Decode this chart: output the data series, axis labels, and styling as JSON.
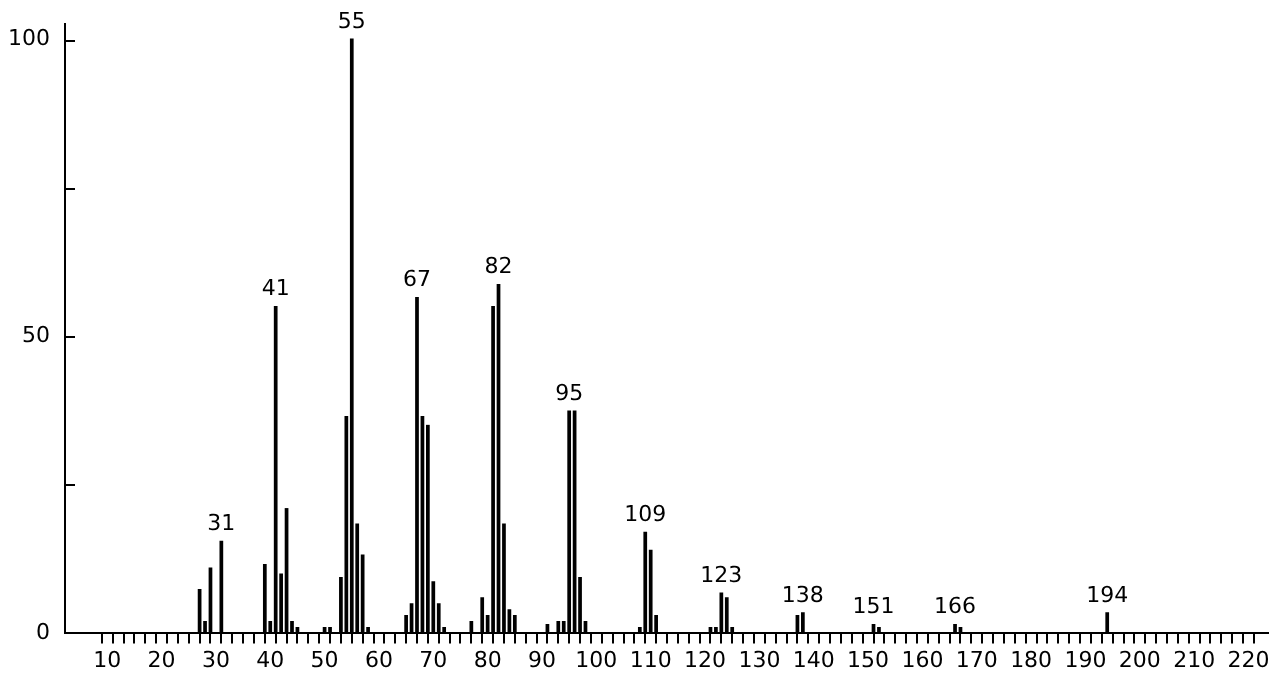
{
  "chart_data": {
    "type": "bar",
    "color": "#000000",
    "x": [
      27,
      28,
      29,
      31,
      39,
      40,
      41,
      42,
      43,
      44,
      45,
      50,
      51,
      53,
      54,
      55,
      56,
      57,
      58,
      65,
      66,
      67,
      68,
      69,
      70,
      71,
      72,
      77,
      79,
      80,
      81,
      82,
      83,
      84,
      85,
      91,
      93,
      94,
      95,
      96,
      97,
      98,
      108,
      109,
      110,
      111,
      121,
      122,
      123,
      124,
      125,
      137,
      138,
      151,
      152,
      166,
      167,
      194
    ],
    "values": [
      7.4,
      2,
      11,
      15.5,
      11.6,
      2,
      55,
      10,
      21,
      2,
      1,
      1,
      1,
      9.4,
      36.5,
      100,
      18.4,
      13.2,
      1,
      3,
      5,
      56.5,
      36.5,
      35,
      8.7,
      5,
      1,
      2,
      6,
      3,
      55,
      58.7,
      18.4,
      4,
      3,
      1.5,
      2,
      2,
      37.4,
      37.4,
      9.4,
      2,
      1,
      17,
      14,
      3,
      1,
      1,
      6.8,
      6,
      1,
      3,
      3.5,
      1.5,
      1,
      1.5,
      1,
      3.5
    ],
    "xlim": [
      2,
      224
    ],
    "xticks": [
      10,
      {
        "value": 12,
        "label": null
      },
      {
        "value": 14,
        "label": null
      },
      {
        "value": 16,
        "label": null
      },
      {
        "value": 18,
        "label": null
      },
      20,
      {
        "value": 22,
        "label": null
      },
      {
        "value": 24,
        "label": null
      },
      {
        "value": 26,
        "label": null
      },
      {
        "value": 28,
        "label": null
      },
      30,
      {
        "value": 32,
        "label": null
      },
      {
        "value": 34,
        "label": null
      },
      {
        "value": 36,
        "label": null
      },
      {
        "value": 38,
        "label": null
      },
      40,
      {
        "value": 42,
        "label": null
      },
      {
        "value": 44,
        "label": null
      },
      {
        "value": 46,
        "label": null
      },
      {
        "value": 48,
        "label": null
      },
      50,
      {
        "value": 52,
        "label": null
      },
      {
        "value": 54,
        "label": null
      },
      {
        "value": 56,
        "label": null
      },
      {
        "value": 58,
        "label": null
      },
      60,
      {
        "value": 62,
        "label": null
      },
      {
        "value": 64,
        "label": null
      },
      {
        "value": 66,
        "label": null
      },
      {
        "value": 68,
        "label": null
      },
      70,
      {
        "value": 72,
        "label": null
      },
      {
        "value": 74,
        "label": null
      },
      {
        "value": 76,
        "label": null
      },
      {
        "value": 78,
        "label": null
      },
      80,
      {
        "value": 82,
        "label": null
      },
      {
        "value": 84,
        "label": null
      },
      {
        "value": 86,
        "label": null
      },
      {
        "value": 88,
        "label": null
      },
      90,
      {
        "value": 92,
        "label": null
      },
      {
        "value": 94,
        "label": null
      },
      {
        "value": 96,
        "label": null
      },
      {
        "value": 98,
        "label": null
      },
      100,
      {
        "value": 102,
        "label": null
      },
      {
        "value": 104,
        "label": null
      },
      {
        "value": 106,
        "label": null
      },
      {
        "value": 108,
        "label": null
      },
      110,
      {
        "value": 112,
        "label": null
      },
      {
        "value": 114,
        "label": null
      },
      {
        "value": 116,
        "label": null
      },
      {
        "value": 118,
        "label": null
      },
      120,
      {
        "value": 122,
        "label": null
      },
      {
        "value": 124,
        "label": null
      },
      {
        "value": 126,
        "label": null
      },
      {
        "value": 128,
        "label": null
      },
      130,
      {
        "value": 132,
        "label": null
      },
      {
        "value": 134,
        "label": null
      },
      {
        "value": 136,
        "label": null
      },
      {
        "value": 138,
        "label": null
      },
      140,
      {
        "value": 142,
        "label": null
      },
      {
        "value": 144,
        "label": null
      },
      {
        "value": 146,
        "label": null
      },
      {
        "value": 148,
        "label": null
      },
      150,
      {
        "value": 152,
        "label": null
      },
      {
        "value": 154,
        "label": null
      },
      {
        "value": 156,
        "label": null
      },
      {
        "value": 158,
        "label": null
      },
      160,
      {
        "value": 162,
        "label": null
      },
      {
        "value": 164,
        "label": null
      },
      {
        "value": 166,
        "label": null
      },
      {
        "value": 168,
        "label": null
      },
      170,
      {
        "value": 172,
        "label": null
      },
      {
        "value": 174,
        "label": null
      },
      {
        "value": 176,
        "label": null
      },
      {
        "value": 178,
        "label": null
      },
      180,
      {
        "value": 182,
        "label": null
      },
      {
        "value": 184,
        "label": null
      },
      {
        "value": 186,
        "label": null
      },
      {
        "value": 188,
        "label": null
      },
      190,
      {
        "value": 192,
        "label": null
      },
      {
        "value": 194,
        "label": null
      },
      {
        "value": 196,
        "label": null
      },
      {
        "value": 198,
        "label": null
      },
      200,
      {
        "value": 202,
        "label": null
      },
      {
        "value": 204,
        "label": null
      },
      {
        "value": 206,
        "label": null
      },
      {
        "value": 208,
        "label": null
      },
      210,
      {
        "value": 212,
        "label": null
      },
      {
        "value": 214,
        "label": null
      },
      {
        "value": 216,
        "label": null
      },
      {
        "value": 218,
        "label": null
      },
      220
    ],
    "ylim": [
      0,
      103
    ],
    "yticks": [
      0,
      {
        "value": 25,
        "label": null
      },
      50,
      {
        "value": 75,
        "label": null
      },
      100
    ],
    "grid": false,
    "legend": false,
    "annotations": [
      {
        "text": "31",
        "x": 31,
        "y": 15.5
      },
      {
        "text": "41",
        "x": 41,
        "y": 55
      },
      {
        "text": "55",
        "x": 55,
        "y": 100
      },
      {
        "text": "67",
        "x": 67,
        "y": 56.5
      },
      {
        "text": "82",
        "x": 82,
        "y": 58.7
      },
      {
        "text": "95",
        "x": 95,
        "y": 37.4
      },
      {
        "text": "109",
        "x": 109,
        "y": 17
      },
      {
        "text": "123",
        "x": 123,
        "y": 6.8
      },
      {
        "text": "138",
        "x": 138,
        "y": 3.5
      },
      {
        "text": "151",
        "x": 151,
        "y": 1.5
      },
      {
        "text": "166",
        "x": 166,
        "y": 1.5
      },
      {
        "text": "194",
        "x": 194,
        "y": 3.5
      }
    ]
  }
}
